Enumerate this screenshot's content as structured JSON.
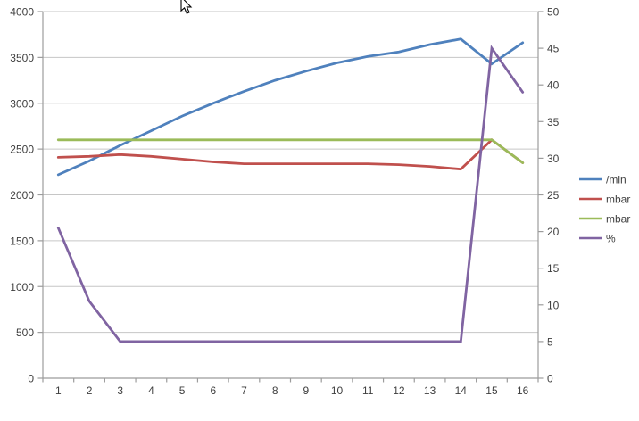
{
  "chart_data": {
    "type": "line",
    "title": "",
    "x_categories": [
      "1",
      "2",
      "3",
      "4",
      "5",
      "6",
      "7",
      "8",
      "9",
      "10",
      "11",
      "12",
      "13",
      "14",
      "15",
      "16"
    ],
    "series": [
      {
        "name": "/min",
        "color": "#4F81BD",
        "axis": "left",
        "values": [
          2220,
          2370,
          2540,
          2700,
          2860,
          3000,
          3130,
          3250,
          3350,
          3440,
          3510,
          3560,
          3640,
          3700,
          3430,
          3660
        ]
      },
      {
        "name": "mbar",
        "color": "#C0504D",
        "axis": "left",
        "values": [
          2410,
          2420,
          2440,
          2420,
          2390,
          2360,
          2340,
          2340,
          2340,
          2340,
          2340,
          2330,
          2310,
          2280,
          2600,
          2350
        ]
      },
      {
        "name": "mbar",
        "color": "#9BBB59",
        "axis": "left",
        "values": [
          2600,
          2600,
          2600,
          2600,
          2600,
          2600,
          2600,
          2600,
          2600,
          2600,
          2600,
          2600,
          2600,
          2600,
          2600,
          2350
        ]
      },
      {
        "name": "%",
        "color": "#8064A2",
        "axis": "right",
        "values": [
          20.5,
          10.5,
          5,
          5,
          5,
          5,
          5,
          5,
          5,
          5,
          5,
          5,
          5,
          5,
          45,
          39
        ]
      }
    ],
    "left_axis": {
      "min": 0,
      "max": 4000,
      "step": 500,
      "tick_labels": [
        "0",
        "500",
        "1000",
        "1500",
        "2000",
        "2500",
        "3000",
        "3500",
        "4000"
      ]
    },
    "right_axis": {
      "min": 0,
      "max": 50,
      "step": 5,
      "tick_labels": [
        "0",
        "5",
        "10",
        "15",
        "20",
        "25",
        "30",
        "35",
        "40",
        "45",
        "50"
      ]
    },
    "legend": {
      "position": "right",
      "entries": [
        "/min",
        "mbar",
        "mbar",
        "%"
      ]
    },
    "grid": true
  },
  "style": {
    "gridline_color": "#c6c6c6",
    "axis_color": "#9c9c9c",
    "label_color": "#3f3f3f",
    "background": "#ffffff",
    "line_width": 2.8
  },
  "cursor": {
    "kind": "arrow-pointer"
  }
}
